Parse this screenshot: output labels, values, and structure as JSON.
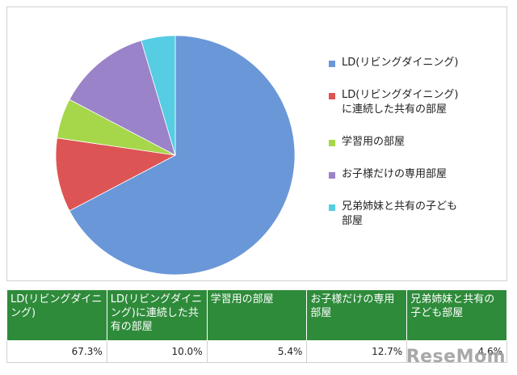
{
  "chart_data": {
    "type": "pie",
    "categories": [
      "LD(リビングダイニング)",
      "LD(リビングダイニング)\nに連続した共有の部屋",
      "学習用の部屋",
      "お子様だけの専用部屋",
      "兄弟姉妹と共有の子ども\n部屋"
    ],
    "values": [
      67.3,
      10.0,
      5.4,
      12.7,
      4.6
    ],
    "colors": [
      "#6a97d8",
      "#dd5454",
      "#a6d64a",
      "#9a83c8",
      "#56cde3"
    ],
    "legend_position": "right"
  },
  "table": {
    "headers": [
      "LD(リビングダイニング)",
      "LD(リビングダイニング)に連続した共有の部屋",
      "学習用の部屋",
      "お子様だけの専用部屋",
      "兄弟姉妹と共有の子ども部屋"
    ],
    "values": [
      "67.3%",
      "10.0%",
      "5.4%",
      "12.7%",
      "4.6%"
    ]
  },
  "watermark": "ReseMom"
}
